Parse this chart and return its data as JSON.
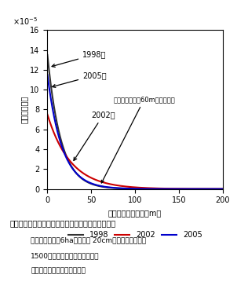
{
  "xlabel": "散布源からの距離（m）",
  "ylabel": "花粉散布確率",
  "xlim": [
    0,
    200
  ],
  "ylim_max": 0.00016,
  "ytick_scale": 1e-05,
  "yticks": [
    0,
    2,
    4,
    6,
    8,
    10,
    12,
    14,
    16
  ],
  "xticks": [
    0,
    50,
    100,
    150,
    200
  ],
  "line_1998_color": "#333333",
  "line_2002_color": "#cc0000",
  "line_2005_color": "#0000cc",
  "annotation_text": "半数の花粉は約60m以内に散布",
  "label_1998": "1998年",
  "label_2002": "2002年",
  "label_2005": "2005年",
  "legend_1998": "1998",
  "legend_2002": "2002",
  "legend_2005": "2005",
  "fig_caption_line1": "図１　花粉の散布源からの距離と散布確率との関係",
  "fig_caption_line2": "天然林試験地（6ha）の直径 20cm以上の全木と種子",
  "fig_caption_line3": "1500個の父性分析による推定。",
  "fig_caption_line4": "西暦年は一斉開花年を示す。",
  "params_1998": {
    "a": 0.000135,
    "b": 0.065
  },
  "params_2002": {
    "a": 7.5e-05,
    "b": 0.038
  },
  "params_2005": {
    "a": 0.000115,
    "b": 0.06
  }
}
